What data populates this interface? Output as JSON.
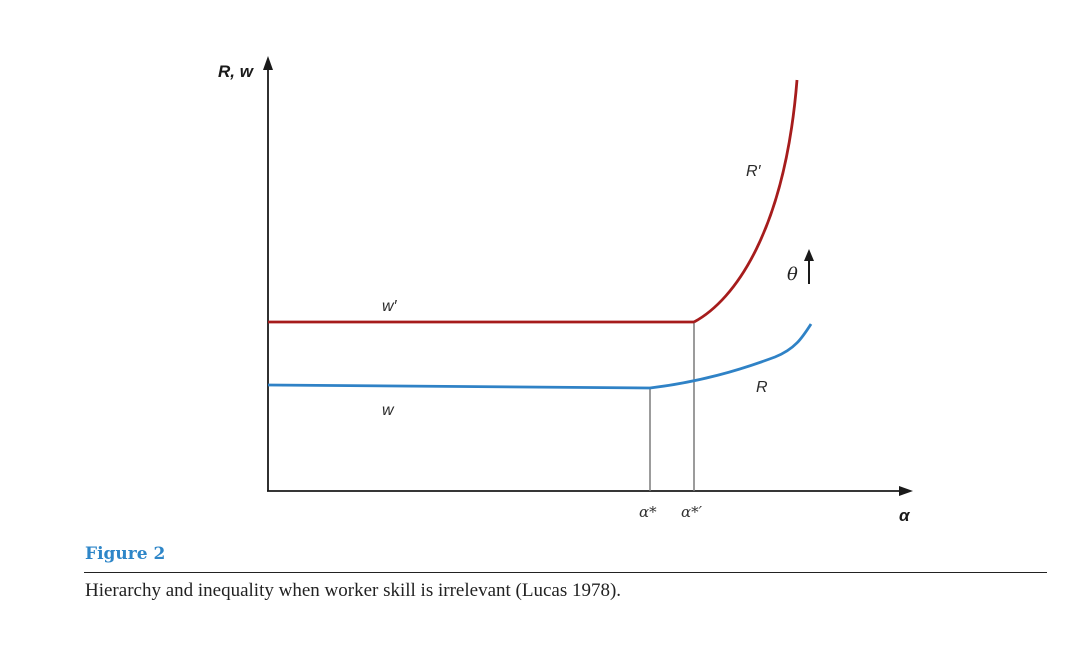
{
  "figure": {
    "y_axis_label": "R, w",
    "x_axis_label": "α",
    "curve_labels": {
      "w_prime": "w′",
      "w": "w",
      "R_prime": "R′",
      "R": "R"
    },
    "tick_labels": {
      "alpha_star": "α*",
      "alpha_star_prime": "α*′"
    },
    "shift_annotation": "θ",
    "colors": {
      "shifted_curves": "#a61c1c",
      "original_curves": "#2f82c6",
      "axes": "#1a1a1a",
      "drop_lines": "#7a7a7a",
      "figure_label": "#2e86c8"
    }
  },
  "caption": {
    "label": "Figure 2",
    "text": "Hierarchy and inequality when worker skill is irrelevant (Lucas 1978)."
  }
}
